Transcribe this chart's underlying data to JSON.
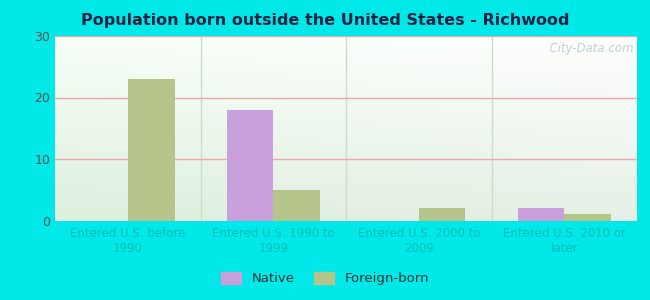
{
  "title": "Population born outside the United States - Richwood",
  "categories": [
    "Entered U.S. before\n1990",
    "Entered U.S. 1990 to\n1999",
    "Entered U.S. 2000 to\n2009",
    "Entered U.S. 2010 or\nlater"
  ],
  "native_values": [
    0,
    18,
    0,
    2
  ],
  "foreign_values": [
    23,
    5,
    2,
    1
  ],
  "native_color": "#c9a0dc",
  "foreign_color": "#b5c48a",
  "ylim": [
    0,
    30
  ],
  "yticks": [
    0,
    10,
    20,
    30
  ],
  "outer_bg": "#00e8e8",
  "bar_width": 0.32,
  "legend_native": "Native",
  "legend_foreign": "Foreign-born",
  "watermark": "  City-Data.com",
  "title_color": "#222244",
  "tick_color": "#00bbbb",
  "ytick_color": "#555555",
  "grid_color": "#e8aaaa",
  "sep_color": "#ccddcc"
}
